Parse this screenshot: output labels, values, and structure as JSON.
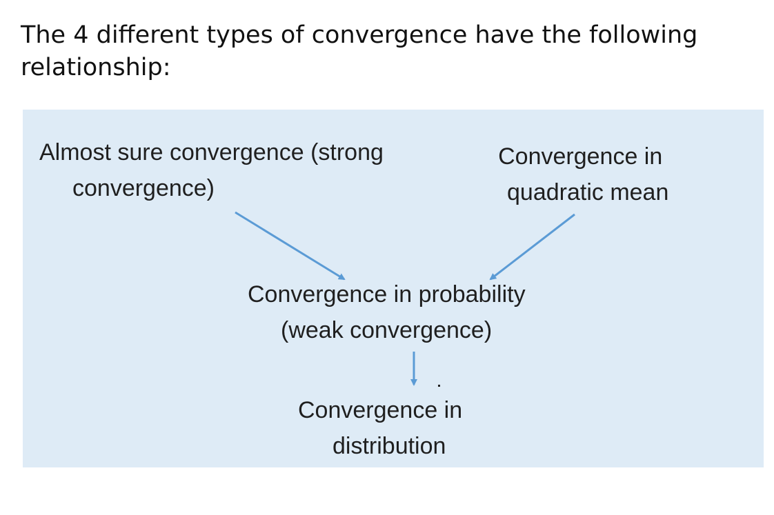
{
  "intro_text": "The 4 different types of convergence have the following relationship:",
  "diagram": {
    "nodes": {
      "almost_sure": {
        "line1": "Almost sure convergence (strong",
        "line2": "convergence)"
      },
      "quadratic_mean": {
        "line1": "Convergence in",
        "line2": "quadratic mean"
      },
      "probability": {
        "line1": "Convergence in probability",
        "line2": "(weak convergence)"
      },
      "distribution": {
        "line1": "Convergence in",
        "line2": "distribution"
      }
    },
    "edges": [
      {
        "from": "almost_sure",
        "to": "probability"
      },
      {
        "from": "quadratic_mean",
        "to": "probability"
      },
      {
        "from": "probability",
        "to": "distribution"
      }
    ],
    "colors": {
      "panel_background": "#deebf6",
      "arrow": "#5b9bd5",
      "text": "#1f1f1f"
    }
  }
}
